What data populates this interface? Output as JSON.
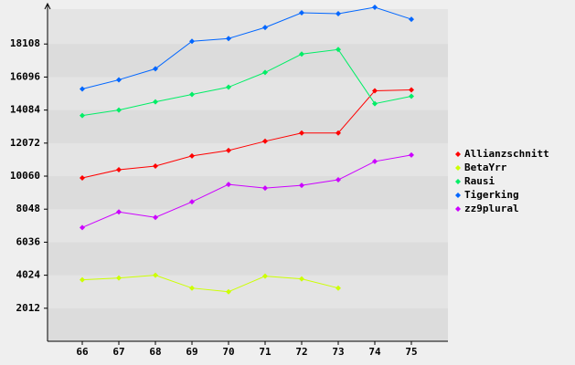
{
  "chart_data": {
    "type": "line",
    "categories": [
      "66",
      "67",
      "68",
      "69",
      "70",
      "71",
      "72",
      "73",
      "74",
      "75"
    ],
    "ylim": [
      0,
      20400
    ],
    "yticks": [
      2012,
      4024,
      6036,
      8048,
      10060,
      12072,
      14084,
      16096,
      18108
    ],
    "grid": true,
    "legend": "right",
    "series": [
      {
        "name": "Allianzschnitt",
        "color": "#ff0000",
        "values": [
          9948,
          10451,
          10675,
          11290,
          11625,
          12184,
          12687,
          12687,
          15258,
          15314
        ]
      },
      {
        "name": "BetaYrr",
        "color": "#ccff00",
        "values": [
          3745,
          3856,
          4024,
          3241,
          3018,
          3968,
          3800,
          3241,
          null,
          null
        ]
      },
      {
        "name": "Rausi",
        "color": "#00ee66",
        "values": [
          13749,
          14084,
          14587,
          15034,
          15481,
          16376,
          17494,
          17773,
          14475,
          14922
        ]
      },
      {
        "name": "Tigerking",
        "color": "#0066ff",
        "values": [
          15370,
          15928,
          16599,
          18276,
          18443,
          19114,
          20008,
          19952,
          20344,
          19617
        ]
      },
      {
        "name": "zz9plural",
        "color": "#cc00ff",
        "values": [
          6930,
          7880,
          7545,
          8495,
          9557,
          9334,
          9501,
          9836,
          10954,
          11346
        ]
      }
    ]
  }
}
